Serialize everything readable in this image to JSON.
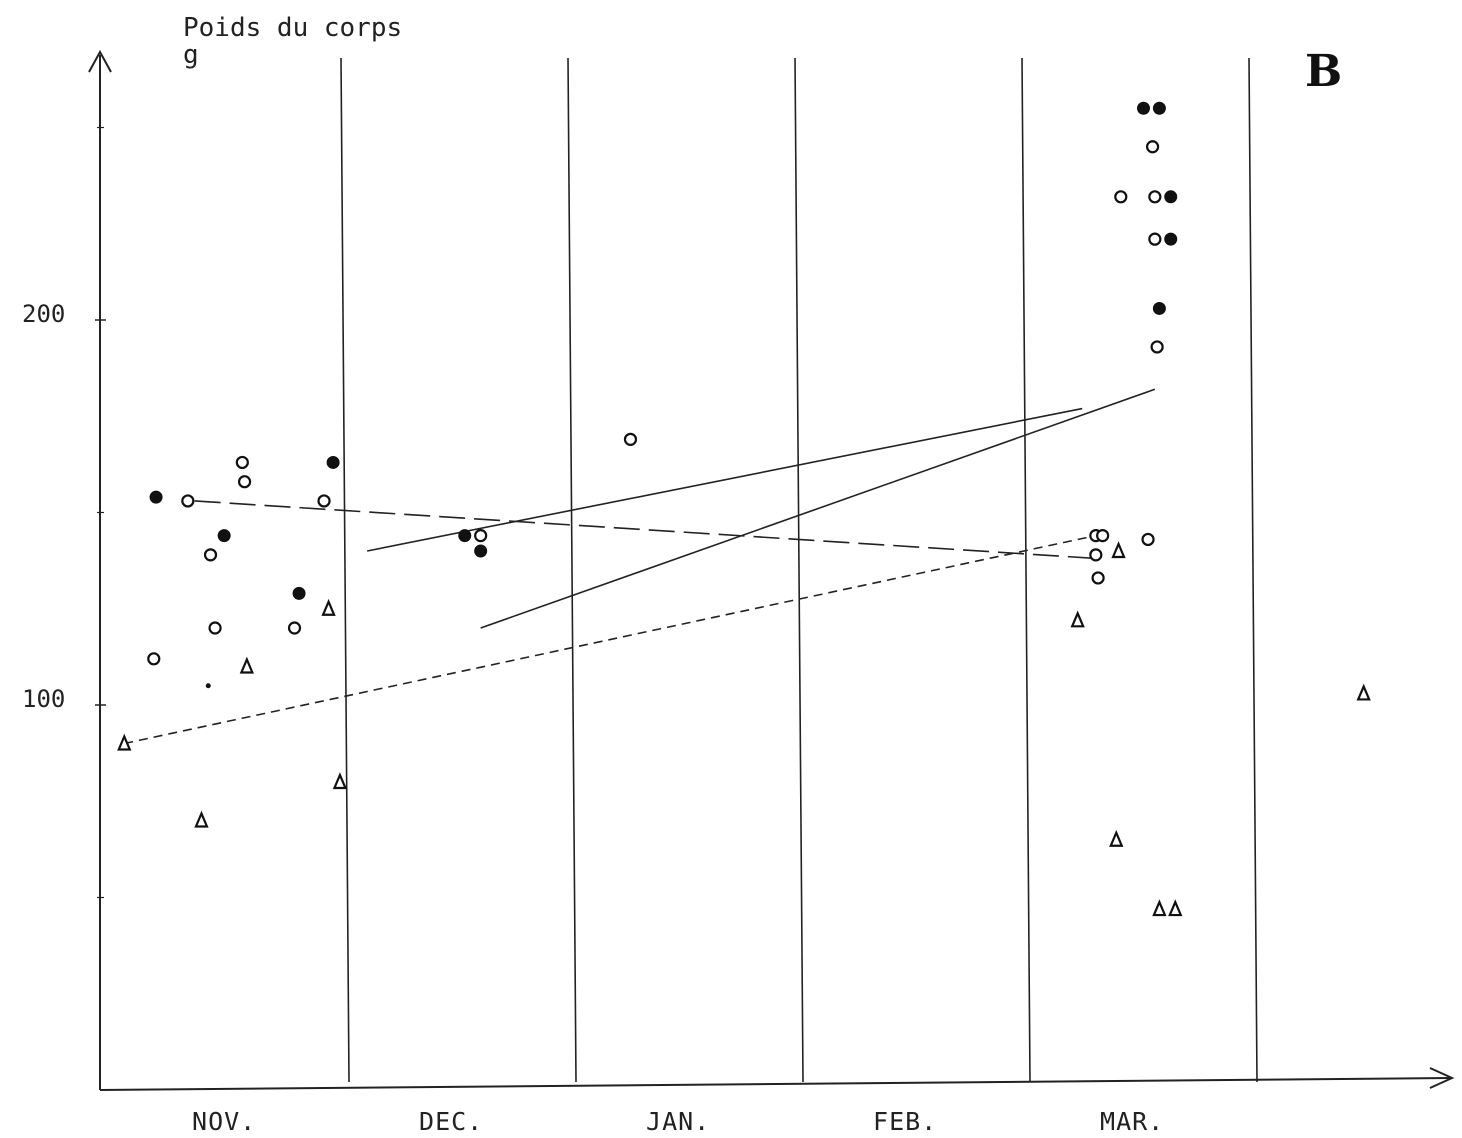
{
  "chart_data": {
    "type": "scatter",
    "panel_label": "B",
    "ylabel": "Poids du corps",
    "yunit": "g",
    "xlabel": "",
    "y_ticks": [
      {
        "value": 200,
        "label": "200"
      },
      {
        "value": 100,
        "label": "100"
      }
    ],
    "ylim": [
      0,
      270
    ],
    "grid": "vertical month dividers",
    "months": [
      "NOV.",
      "DEC.",
      "JAN.",
      "FEB.",
      "MAR."
    ],
    "x_unit": "month index (0 = start of NOV., 5 = end of MAR.)",
    "xlim": [
      -0.5,
      5.6
    ],
    "marker_legend": "none shown",
    "series": [
      {
        "marker": "filled-circle",
        "points": [
          {
            "x": 0.15,
            "y": 154
          },
          {
            "x": 0.45,
            "y": 144
          },
          {
            "x": 0.93,
            "y": 163
          },
          {
            "x": 0.78,
            "y": 129
          },
          {
            "x": 1.58,
            "y": 140
          },
          {
            "x": 1.51,
            "y": 144
          },
          {
            "x": 4.5,
            "y": 255
          },
          {
            "x": 4.57,
            "y": 255
          },
          {
            "x": 4.62,
            "y": 232
          },
          {
            "x": 4.62,
            "y": 221
          },
          {
            "x": 4.57,
            "y": 203
          }
        ]
      },
      {
        "marker": "open-circle",
        "points": [
          {
            "x": 0.29,
            "y": 153
          },
          {
            "x": 0.53,
            "y": 163
          },
          {
            "x": 0.54,
            "y": 158
          },
          {
            "x": 0.39,
            "y": 139
          },
          {
            "x": 0.41,
            "y": 120
          },
          {
            "x": 0.14,
            "y": 112
          },
          {
            "x": 0.76,
            "y": 120
          },
          {
            "x": 0.89,
            "y": 153
          },
          {
            "x": 1.58,
            "y": 144
          },
          {
            "x": 2.24,
            "y": 169
          },
          {
            "x": 4.4,
            "y": 232
          },
          {
            "x": 4.54,
            "y": 245
          },
          {
            "x": 4.55,
            "y": 232
          },
          {
            "x": 4.55,
            "y": 221
          },
          {
            "x": 4.56,
            "y": 193
          },
          {
            "x": 4.29,
            "y": 144
          },
          {
            "x": 4.32,
            "y": 144
          },
          {
            "x": 4.29,
            "y": 139
          },
          {
            "x": 4.3,
            "y": 133
          },
          {
            "x": 4.52,
            "y": 143
          }
        ]
      },
      {
        "marker": "triangle",
        "points": [
          {
            "x": 0.01,
            "y": 90
          },
          {
            "x": 0.35,
            "y": 70
          },
          {
            "x": 0.55,
            "y": 110
          },
          {
            "x": 0.96,
            "y": 80
          },
          {
            "x": 0.91,
            "y": 125
          },
          {
            "x": 4.21,
            "y": 122
          },
          {
            "x": 4.39,
            "y": 140
          },
          {
            "x": 4.38,
            "y": 65
          },
          {
            "x": 4.57,
            "y": 47
          },
          {
            "x": 4.64,
            "y": 47
          },
          {
            "x": 5.47,
            "y": 103
          }
        ]
      },
      {
        "marker": "small-dot",
        "points": [
          {
            "x": 0.38,
            "y": 105
          }
        ]
      }
    ],
    "lines": [
      {
        "style": "solid",
        "from": {
          "x": 1.08,
          "y": 140
        },
        "to": {
          "x": 4.23,
          "y": 177
        }
      },
      {
        "style": "solid",
        "from": {
          "x": 1.58,
          "y": 120
        },
        "to": {
          "x": 4.55,
          "y": 182
        }
      },
      {
        "style": "long-dash",
        "from": {
          "x": 0.32,
          "y": 153
        },
        "to": {
          "x": 4.31,
          "y": 138
        }
      },
      {
        "style": "short-dash",
        "from": {
          "x": 0.01,
          "y": 90
        },
        "to": {
          "x": 4.29,
          "y": 144
        }
      }
    ]
  }
}
